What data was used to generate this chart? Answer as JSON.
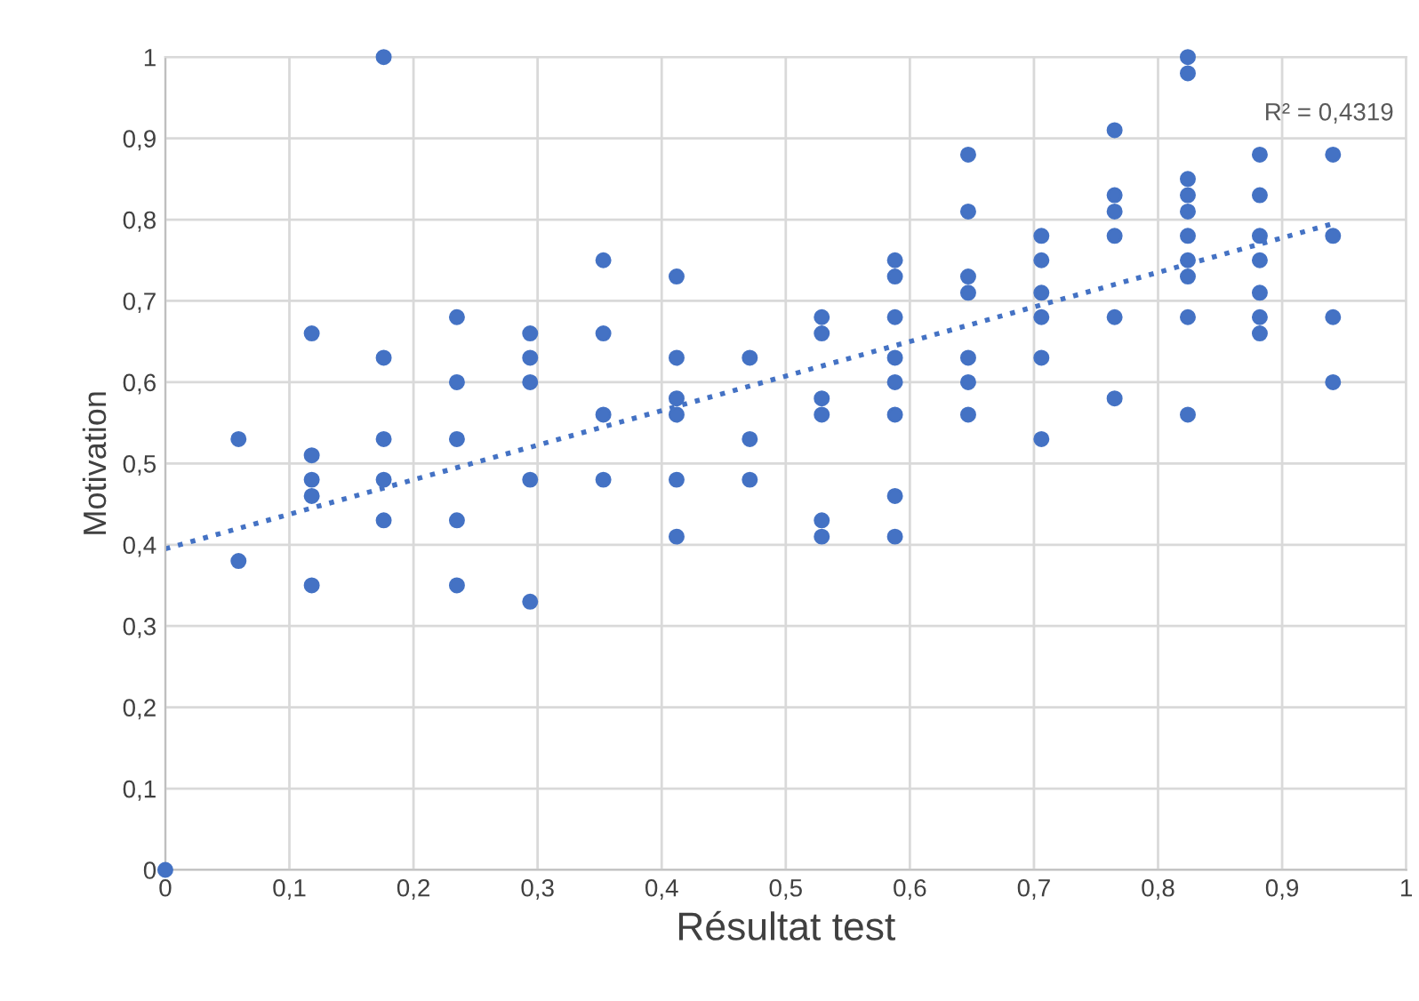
{
  "chart_data": {
    "type": "scatter",
    "xlabel": "Résultat test",
    "ylabel": "Motivation",
    "xlim": [
      0,
      1
    ],
    "ylim": [
      0,
      1
    ],
    "xticks": [
      0,
      {
        "value": 0.1,
        "label": "0,1"
      },
      {
        "value": 0.2,
        "label": "0,2"
      },
      {
        "value": 0.3,
        "label": "0,3"
      },
      {
        "value": 0.4,
        "label": "0,4"
      },
      {
        "value": 0.5,
        "label": "0,5"
      },
      {
        "value": 0.6,
        "label": "0,6"
      },
      {
        "value": 0.7,
        "label": "0,7"
      },
      {
        "value": 0.8,
        "label": "0,8"
      },
      {
        "value": 0.9,
        "label": "0,9"
      },
      1
    ],
    "yticks": [
      0,
      {
        "value": 0.1,
        "label": "0,1"
      },
      {
        "value": 0.2,
        "label": "0,2"
      },
      {
        "value": 0.3,
        "label": "0,3"
      },
      {
        "value": 0.4,
        "label": "0,4"
      },
      {
        "value": 0.5,
        "label": "0,5"
      },
      {
        "value": 0.6,
        "label": "0,6"
      },
      {
        "value": 0.7,
        "label": "0,7"
      },
      {
        "value": 0.8,
        "label": "0,8"
      },
      {
        "value": 0.9,
        "label": "0,9"
      },
      1
    ],
    "grid": true,
    "marker": "circle",
    "legend": false,
    "annotations": [
      "R² = 0,4319"
    ],
    "series": [
      {
        "color": "#4472c4",
        "x": [
          0,
          0.059,
          0.059,
          0.118,
          0.118,
          0.118,
          0.118,
          0.118,
          0.176,
          0.176,
          0.176,
          0.176,
          0.176,
          0.235,
          0.235,
          0.235,
          0.235,
          0.235,
          0.294,
          0.294,
          0.294,
          0.294,
          0.294,
          0.353,
          0.353,
          0.353,
          0.353,
          0.412,
          0.412,
          0.412,
          0.412,
          0.412,
          0.412,
          0.471,
          0.471,
          0.471,
          0.529,
          0.529,
          0.529,
          0.529,
          0.529,
          0.529,
          0.588,
          0.588,
          0.588,
          0.588,
          0.588,
          0.588,
          0.588,
          0.588,
          0.647,
          0.647,
          0.647,
          0.647,
          0.647,
          0.647,
          0.647,
          0.706,
          0.706,
          0.706,
          0.706,
          0.706,
          0.706,
          0.765,
          0.765,
          0.765,
          0.765,
          0.765,
          0.765,
          0.824,
          0.824,
          0.824,
          0.824,
          0.824,
          0.824,
          0.824,
          0.824,
          0.824,
          0.824,
          0.882,
          0.882,
          0.882,
          0.882,
          0.882,
          0.882,
          0.882,
          0.941,
          0.941,
          0.941,
          0.941
        ],
        "values": [
          0,
          0.53,
          0.38,
          0.66,
          0.51,
          0.48,
          0.46,
          0.35,
          1.0,
          0.63,
          0.53,
          0.48,
          0.43,
          0.68,
          0.6,
          0.53,
          0.43,
          0.35,
          0.66,
          0.63,
          0.6,
          0.48,
          0.33,
          0.75,
          0.66,
          0.56,
          0.48,
          0.73,
          0.63,
          0.58,
          0.56,
          0.48,
          0.41,
          0.63,
          0.53,
          0.48,
          0.68,
          0.66,
          0.58,
          0.56,
          0.43,
          0.41,
          0.75,
          0.73,
          0.68,
          0.63,
          0.6,
          0.56,
          0.46,
          0.41,
          0.88,
          0.81,
          0.73,
          0.71,
          0.63,
          0.6,
          0.56,
          0.78,
          0.75,
          0.71,
          0.68,
          0.63,
          0.53,
          0.91,
          0.83,
          0.81,
          0.78,
          0.68,
          0.58,
          1.0,
          0.98,
          0.85,
          0.83,
          0.81,
          0.78,
          0.75,
          0.73,
          0.68,
          0.56,
          0.88,
          0.83,
          0.78,
          0.75,
          0.71,
          0.68,
          0.66,
          0.88,
          0.78,
          0.68,
          0.6
        ]
      },
      {
        "type": "line",
        "color": "#4472c4",
        "line_style": "dotted",
        "marker": "none",
        "x": [
          0,
          0.941
        ],
        "values": [
          0.395,
          0.795
        ]
      }
    ]
  }
}
